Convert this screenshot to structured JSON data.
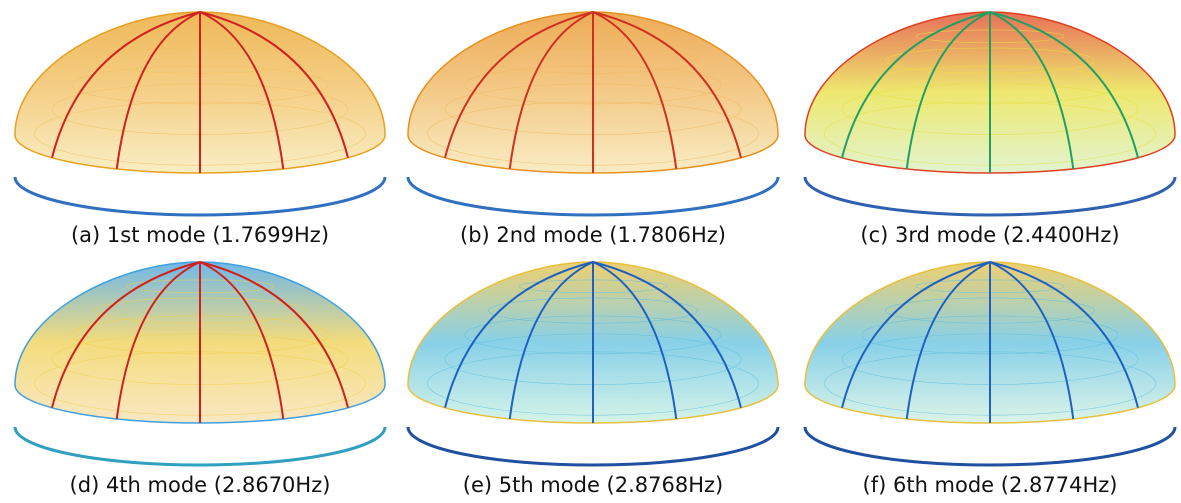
{
  "panels": [
    {
      "caption": "(a) 1st mode (1.7699Hz)"
    },
    {
      "caption": "(b) 2nd mode (1.7806Hz)"
    },
    {
      "caption": "(c) 3rd mode (2.4400Hz)"
    },
    {
      "caption": "(d) 4th mode (2.8670Hz)"
    },
    {
      "caption": "(e) 5th mode (2.8768Hz)"
    },
    {
      "caption": "(f) 6th mode (2.8774Hz)"
    }
  ]
}
